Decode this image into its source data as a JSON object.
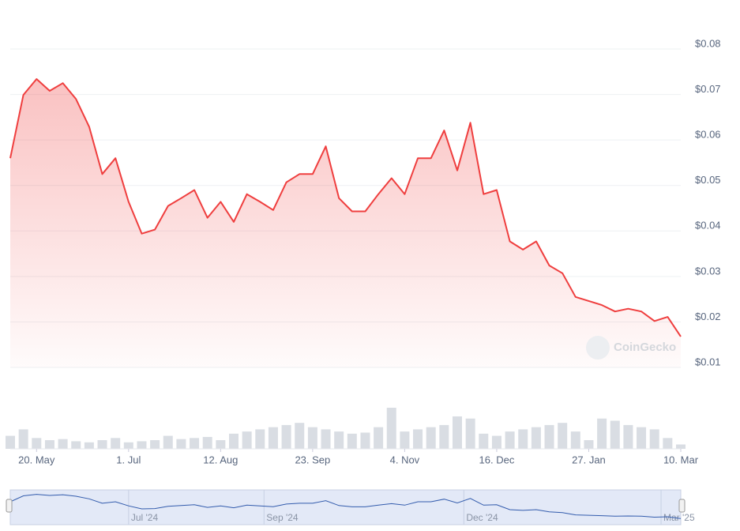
{
  "chart_data": {
    "type": "area",
    "watermark": "CoinGecko",
    "color": "#ef3e3e",
    "categories": [
      null,
      null,
      "20. May",
      null,
      null,
      null,
      null,
      null,
      null,
      "1. Jul",
      null,
      null,
      null,
      null,
      null,
      null,
      "12. Aug",
      null,
      null,
      null,
      null,
      null,
      null,
      "23. Sep",
      null,
      null,
      null,
      null,
      null,
      null,
      "4. Nov",
      null,
      null,
      null,
      null,
      null,
      null,
      "16. Dec",
      null,
      null,
      null,
      null,
      null,
      null,
      "27. Jan",
      null,
      null,
      null,
      null,
      null,
      null,
      "10. Mar"
    ],
    "values": [
      0.056,
      0.0699,
      0.0734,
      0.0708,
      0.0725,
      0.069,
      0.0629,
      0.0525,
      0.056,
      0.0464,
      0.0394,
      0.0403,
      0.0455,
      0.0472,
      0.049,
      0.0429,
      0.0464,
      0.042,
      0.0481,
      0.0464,
      0.0446,
      0.0507,
      0.0525,
      0.0525,
      0.0586,
      0.0472,
      0.0443,
      0.0443,
      0.0481,
      0.0516,
      0.0481,
      0.056,
      0.056,
      0.0621,
      0.0533,
      0.0638,
      0.0481,
      0.049,
      0.0377,
      0.0359,
      0.0377,
      0.0324,
      0.0307,
      0.0255,
      0.0246,
      0.0237,
      0.0223,
      0.0229,
      0.0223,
      0.0202,
      0.0211,
      0.0168
    ],
    "volume": {
      "color": "#d9dde3",
      "values": [
        12,
        18,
        10,
        8,
        9,
        7,
        6,
        8,
        10,
        6,
        7,
        8,
        12,
        9,
        10,
        11,
        8,
        14,
        16,
        18,
        20,
        22,
        24,
        20,
        18,
        16,
        14,
        15,
        20,
        38,
        16,
        18,
        20,
        22,
        30,
        28,
        14,
        12,
        16,
        18,
        20,
        22,
        24,
        16,
        8,
        28,
        26,
        22,
        20,
        18,
        10,
        4
      ]
    },
    "ylim": [
      0.01,
      0.08
    ],
    "yticks": [
      {
        "value": 0.01,
        "label": "$0.01"
      },
      {
        "value": 0.02,
        "label": "$0.02"
      },
      {
        "value": 0.03,
        "label": "$0.03"
      },
      {
        "value": 0.04,
        "label": "$0.04"
      },
      {
        "value": 0.05,
        "label": "$0.05"
      },
      {
        "value": 0.06,
        "label": "$0.06"
      },
      {
        "value": 0.07,
        "label": "$0.07"
      },
      {
        "value": 0.08,
        "label": "$0.08"
      }
    ],
    "grid": true,
    "navigator": {
      "color": "#335cad",
      "xticks": [
        {
          "value": 9,
          "label": "Jul '24"
        },
        {
          "value": 19.3,
          "label": "Sep '24"
        },
        {
          "value": 34.5,
          "label": "Dec '24"
        },
        {
          "value": 49.5,
          "label": "Mar '25"
        }
      ]
    }
  }
}
